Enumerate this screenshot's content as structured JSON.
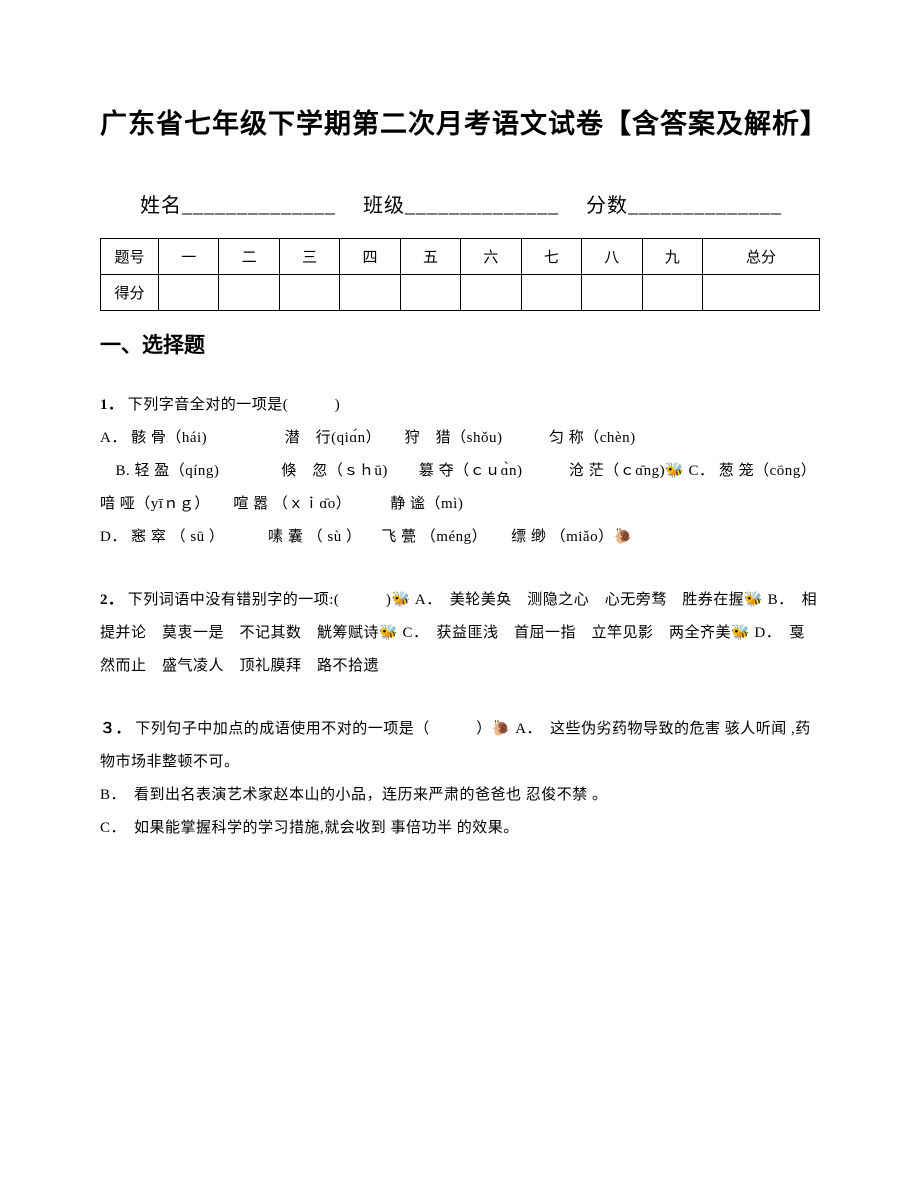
{
  "title": "广东省七年级下学期第二次月考语文试卷【含答案及解析】",
  "studentInfo": {
    "name_label": "姓名",
    "class_label": "班级",
    "score_label": "分数",
    "underline": "______________"
  },
  "scoreTable": {
    "row1_label": "题号",
    "row2_label": "得分",
    "columns": [
      "一",
      "二",
      "三",
      "四",
      "五",
      "六",
      "七",
      "八",
      "九",
      "总分"
    ]
  },
  "sectionHeading": "一、选择题",
  "questions": {
    "q1": {
      "num": "1．",
      "stem": "下列字音全对的一项是(　　　)",
      "optA_label": " A．",
      "optA_text": "骸 骨（hái)　　　　　潜　行(qiɑ́n）　　狩　猎（shǒu)　　　匀 称（chèn)",
      "optB_label": "　B. ",
      "optB_text": "轻 盈（qíng)　　　　倏　忽（ｓｈū)　　篡 夺（ｃｕɑ̀n)　　　沧 茫（ｃɑ̄ng)",
      "marker1": "🐝",
      "optC_label": " C．",
      "optC_text": "葱 笼（cōng）　　　　喑 哑（yīｎｇ）　　喧 嚣 （ｘｉɑ̄o）　　　静 谧（mì)",
      "optD_label": " D．",
      "optD_text": "窸 窣 （ sū ） 　 　 嗉 囊 （ sù  ） 　飞 甍 （méng） 　 缥 缈  （miǎo）",
      "marker2": "🐌"
    },
    "q2": {
      "num": "2．",
      "stem": "下列词语中没有错别字的一项:(　　　)",
      "marker1": "🐝",
      "optA": " A．　美轮美奂　测隐之心　心无旁骛　胜券在握",
      "marker2": "🐝",
      "optB": " B．　相提并论　莫衷一是　不记其数　觥筹赋诗",
      "marker3": "🐝",
      "optC": " C．　获益匪浅　首屈一指　立竿见影　两全齐美",
      "marker4": "🐝",
      "optD": " D．　戛然而止　盛气凌人　顶礼膜拜　路不拾遗"
    },
    "q3": {
      "num": "３．",
      "stem": "下列句子中加点的成语使用不对的一项是（　　　）",
      "marker1": "🐌",
      "optA": " A．　这些伪劣药物导致的危害 骇人听闻  ,药物市场非整顿不可。",
      "optB": " B．　看到出名表演艺术家赵本山的小品，连历来严肃的爸爸也 忍俊不禁 。",
      "optC": " C．　如果能掌握科学的学习措施,就会收到 事倍功半 的效果。"
    }
  }
}
